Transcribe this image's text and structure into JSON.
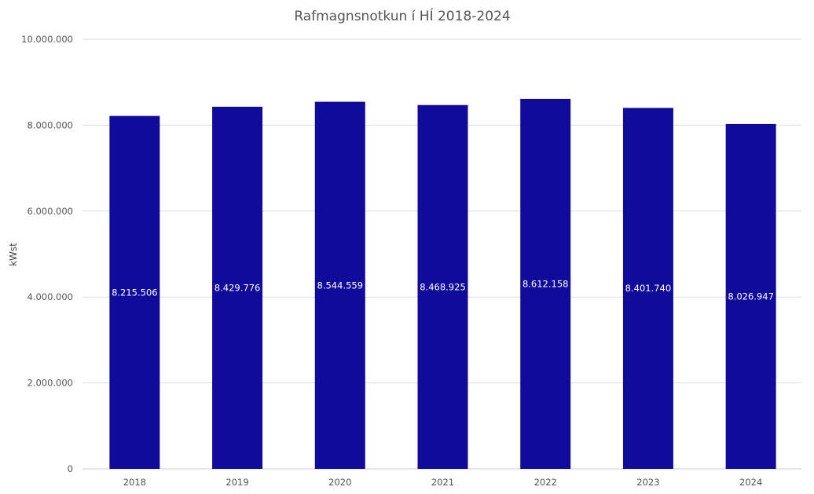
{
  "chart_data": {
    "type": "bar",
    "title": "Rafmagnsnotkun í HÍ 2018-2024",
    "xlabel": "",
    "ylabel": "kWst",
    "categories": [
      "2018",
      "2019",
      "2020",
      "2021",
      "2022",
      "2023",
      "2024"
    ],
    "values": [
      8215506,
      8429776,
      8544559,
      8468925,
      8612158,
      8401740,
      8026947
    ],
    "data_labels": [
      "8.215.506",
      "8.429.776",
      "8.544.559",
      "8.468.925",
      "8.612.158",
      "8.401.740",
      "8.026.947"
    ],
    "ylim": [
      0,
      10000000
    ],
    "yticks": [
      0,
      2000000,
      4000000,
      6000000,
      8000000,
      10000000
    ],
    "ytick_labels": [
      "0",
      "2.000.000",
      "4.000.000",
      "6.000.000",
      "8.000.000",
      "10.000.000"
    ],
    "grid": true,
    "legend": "none",
    "bar_color": "#110b9b",
    "label_color": "#ffffff"
  }
}
